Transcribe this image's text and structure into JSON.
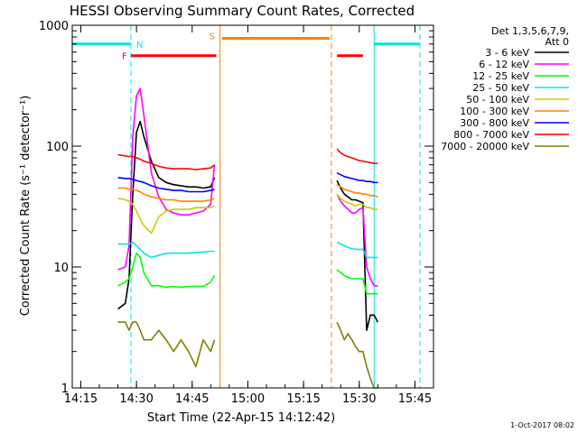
{
  "chart_data": {
    "type": "line",
    "title": "HESSI Observing Summary Count Rates, Corrected",
    "xlabel": "Start Time (22-Apr-15 14:12:42)",
    "ylabel": "Corrected Count Rate (s⁻¹ detector⁻¹)",
    "yscale": "log",
    "ylim": [
      1,
      1000
    ],
    "xlim": [
      "14:12:42",
      "15:50:00"
    ],
    "x_ticks": [
      "14:15",
      "14:30",
      "14:45",
      "15:00",
      "15:15",
      "15:30",
      "15:45"
    ],
    "y_ticks": [
      "1",
      "10",
      "100",
      "1000"
    ],
    "legend": {
      "title_lines": [
        "Det 1,3,5,6,7,9,",
        "Att 0"
      ],
      "placement": "right"
    },
    "footer": "1-Oct-2017 08:02",
    "flag_markers": [
      {
        "label": "N",
        "color": "#00e5e5",
        "style": "dashed",
        "x": [
          "14:28:30",
          "15:46:20"
        ]
      },
      {
        "label": "F",
        "color": "#ff0000",
        "x": [
          "14:28:30",
          "14:51:30"
        ]
      },
      {
        "label": "S",
        "color": "#ff8000",
        "x": [
          "14:52:30",
          "15:22:30"
        ]
      }
    ],
    "bars": [
      {
        "color": "#00e5e5",
        "y": 700,
        "segments": [
          [
            "14:12:42",
            "14:28:30"
          ],
          [
            "15:34:00",
            "15:46:20"
          ]
        ]
      },
      {
        "color": "#ff0000",
        "y": 560,
        "segments": [
          [
            "14:28:30",
            "14:51:30"
          ],
          [
            "15:24:00",
            "15:31:00"
          ]
        ]
      },
      {
        "color": "#ff8000",
        "y": 780,
        "segments": [
          [
            "14:53:00",
            "15:22:00"
          ]
        ]
      }
    ],
    "vlines": [
      {
        "color": "#00e5e5",
        "style": "dashed",
        "x": "14:28:30"
      },
      {
        "color": "#ff8000",
        "style": "solid",
        "x": "14:52:30"
      },
      {
        "color": "#ff8000",
        "style": "dashed",
        "x": "15:22:30"
      },
      {
        "color": "#00e5e5",
        "style": "solid",
        "x": "15:34:00"
      },
      {
        "color": "#00e5e5",
        "style": "dashed",
        "x": "15:46:20"
      }
    ],
    "series": [
      {
        "name": "3 - 6 keV",
        "color": "#000000",
        "x": [
          "14:25",
          "14:27",
          "14:28",
          "14:29",
          "14:30",
          "14:31",
          "14:32",
          "14:34",
          "14:36",
          "14:38",
          "14:40",
          "14:42",
          "14:44",
          "14:46",
          "14:48",
          "14:50",
          "14:51",
          "15:24",
          "15:25",
          "15:26",
          "15:27",
          "15:28",
          "15:29",
          "15:30",
          "15:31",
          "15:32",
          "15:33",
          "15:34",
          "15:35"
        ],
        "y": [
          4.5,
          5.0,
          8.0,
          40,
          130,
          160,
          120,
          75,
          55,
          50,
          48,
          47,
          46,
          46,
          45,
          46,
          55,
          52,
          45,
          40,
          38,
          36,
          36,
          35,
          34,
          3.0,
          4.0,
          4.0,
          3.5
        ]
      },
      {
        "name": "6 - 12 keV",
        "color": "#ff00ff",
        "x": [
          "14:25",
          "14:27",
          "14:28",
          "14:29",
          "14:30",
          "14:31",
          "14:32",
          "14:34",
          "14:36",
          "14:38",
          "14:40",
          "14:42",
          "14:44",
          "14:46",
          "14:48",
          "14:50",
          "14:51",
          "15:24",
          "15:25",
          "15:26",
          "15:27",
          "15:28",
          "15:29",
          "15:30",
          "15:31",
          "15:32",
          "15:33",
          "15:34",
          "15:35"
        ],
        "y": [
          9.5,
          10,
          15,
          120,
          260,
          300,
          180,
          60,
          38,
          30,
          28,
          27,
          27,
          28,
          29,
          33,
          70,
          40,
          35,
          32,
          30,
          28,
          28,
          30,
          31,
          10,
          8,
          7,
          7
        ]
      },
      {
        "name": "12 - 25 keV",
        "color": "#00ff00",
        "x": [
          "14:25",
          "14:27",
          "14:28",
          "14:29",
          "14:30",
          "14:31",
          "14:32",
          "14:34",
          "14:36",
          "14:38",
          "14:40",
          "14:42",
          "14:44",
          "14:46",
          "14:48",
          "14:50",
          "14:51",
          "15:24",
          "15:25",
          "15:26",
          "15:27",
          "15:28",
          "15:29",
          "15:30",
          "15:31",
          "15:32",
          "15:33",
          "15:34",
          "15:35"
        ],
        "y": [
          7,
          7.5,
          8,
          10,
          13,
          12,
          9,
          7,
          7,
          6.8,
          6.9,
          6.8,
          6.9,
          6.9,
          6.9,
          7.5,
          8.5,
          9.5,
          9,
          8.5,
          8.2,
          8,
          8,
          8,
          8,
          6,
          6,
          6,
          6
        ]
      },
      {
        "name": "25 - 50 keV",
        "color": "#00e5e5",
        "x": [
          "14:25",
          "14:27",
          "14:28",
          "14:29",
          "14:30",
          "14:31",
          "14:32",
          "14:34",
          "14:36",
          "14:38",
          "14:40",
          "14:42",
          "14:44",
          "14:46",
          "14:48",
          "14:50",
          "14:51",
          "15:24",
          "15:25",
          "15:26",
          "15:27",
          "15:28",
          "15:29",
          "15:30",
          "15:31",
          "15:32",
          "15:33",
          "15:34",
          "15:35"
        ],
        "y": [
          15.5,
          15.5,
          15.5,
          16,
          15,
          14,
          13,
          12,
          12.5,
          13,
          13,
          13,
          13,
          13.2,
          13.3,
          13.5,
          13.5,
          16,
          15.5,
          15,
          14.5,
          14.2,
          14,
          14,
          14,
          12,
          12,
          12,
          12
        ]
      },
      {
        "name": "50 - 100 keV",
        "color": "#cccc00",
        "x": [
          "14:25",
          "14:27",
          "14:28",
          "14:29",
          "14:30",
          "14:31",
          "14:32",
          "14:34",
          "14:36",
          "14:38",
          "14:40",
          "14:42",
          "14:44",
          "14:46",
          "14:48",
          "14:50",
          "14:51",
          "15:24",
          "15:25",
          "15:26",
          "15:27",
          "15:28",
          "15:29",
          "15:30",
          "15:31",
          "15:32",
          "15:33",
          "15:34",
          "15:35"
        ],
        "y": [
          37,
          36,
          35,
          33,
          29,
          25,
          22,
          19,
          26,
          29,
          30,
          30,
          30,
          31,
          31,
          31,
          32,
          40,
          37,
          35,
          34,
          33,
          32,
          33,
          33,
          31,
          31,
          30,
          30
        ]
      },
      {
        "name": "100 - 300 keV",
        "color": "#ff8000",
        "x": [
          "14:25",
          "14:27",
          "14:28",
          "14:29",
          "14:30",
          "14:31",
          "14:32",
          "14:34",
          "14:36",
          "14:38",
          "14:40",
          "14:42",
          "14:44",
          "14:46",
          "14:48",
          "14:50",
          "14:51",
          "15:24",
          "15:25",
          "15:26",
          "15:27",
          "15:28",
          "15:29",
          "15:30",
          "15:31",
          "15:32",
          "15:33",
          "15:34",
          "15:35"
        ],
        "y": [
          45,
          45,
          44,
          44,
          43,
          42,
          40,
          38,
          37,
          36,
          36,
          35,
          35,
          35,
          35,
          36,
          37,
          48,
          46,
          44,
          43,
          42,
          41,
          41,
          40,
          40,
          39,
          39,
          38
        ]
      },
      {
        "name": "300 - 800 keV",
        "color": "#0000ff",
        "x": [
          "14:25",
          "14:27",
          "14:28",
          "14:29",
          "14:30",
          "14:31",
          "14:32",
          "14:34",
          "14:36",
          "14:38",
          "14:40",
          "14:42",
          "14:44",
          "14:46",
          "14:48",
          "14:50",
          "14:51",
          "15:24",
          "15:25",
          "15:26",
          "15:27",
          "15:28",
          "15:29",
          "15:30",
          "15:31",
          "15:32",
          "15:33",
          "15:34",
          "15:35"
        ],
        "y": [
          55,
          54,
          54,
          53,
          52,
          51,
          50,
          47,
          45,
          44,
          43,
          43,
          42,
          42,
          42,
          43,
          44,
          60,
          58,
          56,
          55,
          54,
          53,
          52,
          52,
          51,
          51,
          50,
          50
        ]
      },
      {
        "name": "800 - 7000 keV",
        "color": "#ff0000",
        "x": [
          "14:25",
          "14:27",
          "14:28",
          "14:29",
          "14:30",
          "14:31",
          "14:32",
          "14:34",
          "14:36",
          "14:38",
          "14:40",
          "14:42",
          "14:44",
          "14:46",
          "14:48",
          "14:50",
          "14:51",
          "15:24",
          "15:25",
          "15:26",
          "15:27",
          "15:28",
          "15:29",
          "15:30",
          "15:31",
          "15:32",
          "15:33",
          "15:34",
          "15:35"
        ],
        "y": [
          85,
          83,
          82,
          82,
          80,
          78,
          75,
          72,
          68,
          66,
          65,
          65,
          65,
          64,
          65,
          66,
          70,
          95,
          88,
          84,
          82,
          80,
          78,
          76,
          75,
          74,
          73,
          72,
          72
        ]
      },
      {
        "name": "7000 - 20000 keV",
        "color": "#808000",
        "x": [
          "14:25",
          "14:27",
          "14:28",
          "14:29",
          "14:30",
          "14:31",
          "14:32",
          "14:34",
          "14:36",
          "14:38",
          "14:40",
          "14:42",
          "14:44",
          "14:46",
          "14:48",
          "14:50",
          "14:51",
          "15:24",
          "15:25",
          "15:26",
          "15:27",
          "15:28",
          "15:29",
          "15:30",
          "15:31",
          "15:32",
          "15:33",
          "15:34",
          "15:35"
        ],
        "y": [
          3.5,
          3.5,
          3.0,
          3.5,
          3.5,
          3.0,
          2.5,
          2.5,
          3.0,
          2.5,
          2.0,
          2.5,
          2.0,
          1.5,
          2.5,
          2.0,
          2.5,
          3.5,
          3.0,
          2.5,
          2.8,
          2.5,
          2.2,
          2.0,
          2.0,
          1.5,
          1.2,
          1.0,
          1.0
        ]
      }
    ]
  }
}
